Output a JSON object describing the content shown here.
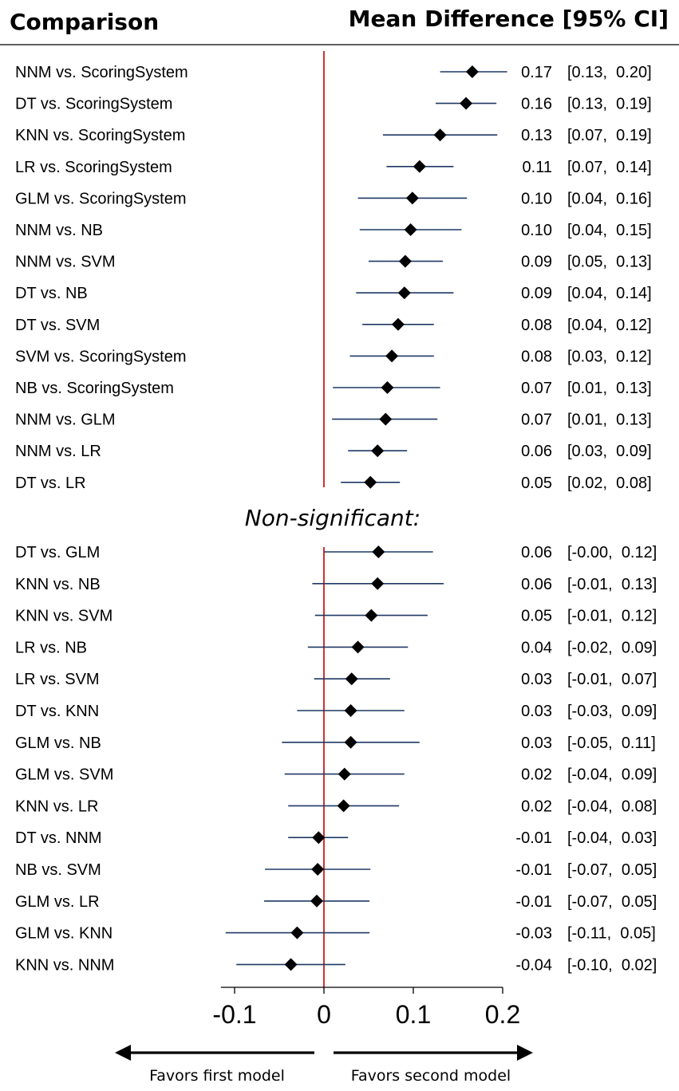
{
  "chart_data": {
    "type": "forest",
    "header": {
      "left": "Comparison",
      "right": "Mean Difference [95% CI]"
    },
    "significant": [
      {
        "label": "NNM vs. ScoringSystem",
        "mean": 0.166,
        "lo": 0.13,
        "hi": 0.205,
        "text": "0.17",
        "ci_text": "[0.13,  0.20]"
      },
      {
        "label": "DT vs. ScoringSystem",
        "mean": 0.159,
        "lo": 0.125,
        "hi": 0.193,
        "text": "0.16",
        "ci_text": "[0.13,  0.19]"
      },
      {
        "label": "KNN vs. ScoringSystem",
        "mean": 0.13,
        "lo": 0.066,
        "hi": 0.194,
        "text": "0.13",
        "ci_text": "[0.07,  0.19]"
      },
      {
        "label": "LR vs. ScoringSystem",
        "mean": 0.107,
        "lo": 0.07,
        "hi": 0.145,
        "text": "0.11",
        "ci_text": "[0.07,  0.14]"
      },
      {
        "label": "GLM vs. ScoringSystem",
        "mean": 0.099,
        "lo": 0.038,
        "hi": 0.16,
        "text": "0.10",
        "ci_text": "[0.04,  0.16]"
      },
      {
        "label": "NNM vs. NB",
        "mean": 0.097,
        "lo": 0.04,
        "hi": 0.154,
        "text": "0.10",
        "ci_text": "[0.04,  0.15]"
      },
      {
        "label": "NNM vs. SVM",
        "mean": 0.091,
        "lo": 0.05,
        "hi": 0.133,
        "text": "0.09",
        "ci_text": "[0.05,  0.13]"
      },
      {
        "label": "DT vs. NB",
        "mean": 0.09,
        "lo": 0.036,
        "hi": 0.145,
        "text": "0.09",
        "ci_text": "[0.04,  0.14]"
      },
      {
        "label": "DT vs. SVM",
        "mean": 0.083,
        "lo": 0.043,
        "hi": 0.123,
        "text": "0.08",
        "ci_text": "[0.04,  0.12]"
      },
      {
        "label": "SVM vs. ScoringSystem",
        "mean": 0.076,
        "lo": 0.029,
        "hi": 0.123,
        "text": "0.08",
        "ci_text": "[0.03,  0.12]"
      },
      {
        "label": "NB vs. ScoringSystem",
        "mean": 0.071,
        "lo": 0.01,
        "hi": 0.13,
        "text": "0.07",
        "ci_text": "[0.01,  0.13]"
      },
      {
        "label": "NNM vs. GLM",
        "mean": 0.069,
        "lo": 0.009,
        "hi": 0.127,
        "text": "0.07",
        "ci_text": "[0.01,  0.13]"
      },
      {
        "label": "NNM vs. LR",
        "mean": 0.06,
        "lo": 0.027,
        "hi": 0.093,
        "text": "0.06",
        "ci_text": "[0.03,  0.09]"
      },
      {
        "label": "DT vs. LR",
        "mean": 0.052,
        "lo": 0.019,
        "hi": 0.085,
        "text": "0.05",
        "ci_text": "[0.02,  0.08]"
      }
    ],
    "subheading": "Non-significant:",
    "nonsignificant": [
      {
        "label": "DT vs. GLM",
        "mean": 0.061,
        "lo": 0.0,
        "hi": 0.122,
        "text": "0.06",
        "ci_text": "[-0.00,  0.12]"
      },
      {
        "label": "KNN vs. NB",
        "mean": 0.06,
        "lo": -0.013,
        "hi": 0.134,
        "text": "0.06",
        "ci_text": "[-0.01,  0.13]"
      },
      {
        "label": "KNN vs. SVM",
        "mean": 0.053,
        "lo": -0.01,
        "hi": 0.116,
        "text": "0.05",
        "ci_text": "[-0.01,  0.12]"
      },
      {
        "label": "LR vs. NB",
        "mean": 0.038,
        "lo": -0.018,
        "hi": 0.094,
        "text": "0.04",
        "ci_text": "[-0.02,  0.09]"
      },
      {
        "label": "LR vs. SVM",
        "mean": 0.031,
        "lo": -0.011,
        "hi": 0.074,
        "text": "0.03",
        "ci_text": "[-0.01,  0.07]"
      },
      {
        "label": "DT vs. KNN",
        "mean": 0.03,
        "lo": -0.03,
        "hi": 0.09,
        "text": "0.03",
        "ci_text": "[-0.03,  0.09]"
      },
      {
        "label": "GLM vs. NB",
        "mean": 0.03,
        "lo": -0.047,
        "hi": 0.107,
        "text": "0.03",
        "ci_text": "[-0.05,  0.11]"
      },
      {
        "label": "GLM vs. SVM",
        "mean": 0.023,
        "lo": -0.044,
        "hi": 0.09,
        "text": "0.02",
        "ci_text": "[-0.04,  0.09]"
      },
      {
        "label": "KNN vs. LR",
        "mean": 0.022,
        "lo": -0.04,
        "hi": 0.084,
        "text": "0.02",
        "ci_text": "[-0.04,  0.08]"
      },
      {
        "label": "DT vs. NNM",
        "mean": -0.006,
        "lo": -0.04,
        "hi": 0.027,
        "text": "-0.01",
        "ci_text": "[-0.04,  0.03]"
      },
      {
        "label": "NB vs. SVM",
        "mean": -0.007,
        "lo": -0.066,
        "hi": 0.052,
        "text": "-0.01",
        "ci_text": "[-0.07,  0.05]"
      },
      {
        "label": "GLM vs. LR",
        "mean": -0.008,
        "lo": -0.067,
        "hi": 0.051,
        "text": "-0.01",
        "ci_text": "[-0.07,  0.05]"
      },
      {
        "label": "GLM vs. KNN",
        "mean": -0.03,
        "lo": -0.11,
        "hi": 0.051,
        "text": "-0.03",
        "ci_text": "[-0.11,  0.05]"
      },
      {
        "label": "KNN vs. NNM",
        "mean": -0.037,
        "lo": -0.098,
        "hi": 0.024,
        "text": "-0.04",
        "ci_text": "[-0.10,  0.02]"
      }
    ],
    "x_axis": {
      "range": [
        -0.11,
        0.2
      ],
      "ticks": [
        -0.1,
        0,
        0.1,
        0.2
      ],
      "tick_labels": [
        "-0.1",
        "0",
        "0.1",
        "0.2"
      ],
      "reference_line": 0
    },
    "favors": {
      "left": "Favors first model",
      "right": "Favors second model"
    },
    "colors": {
      "ci": "#1f3864",
      "reference": "#c00000",
      "marker": "#000000"
    }
  }
}
